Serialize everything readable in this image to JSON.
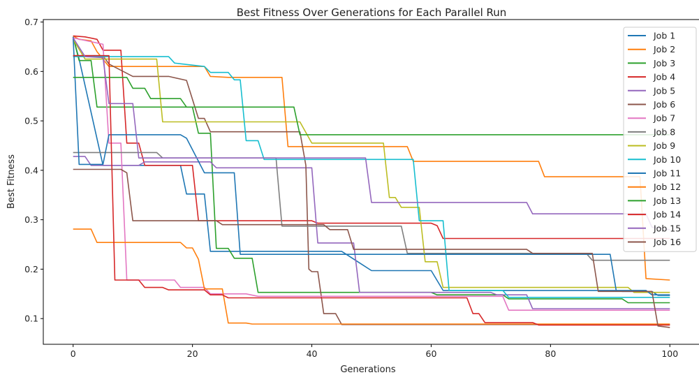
{
  "chart_data": {
    "type": "line",
    "title": "Best Fitness Over Generations for Each Parallel Run",
    "xlabel": "Generations",
    "ylabel": "Best Fitness",
    "xlim": [
      -5,
      105
    ],
    "ylim": [
      0.048,
      0.705
    ],
    "xticks": [
      0,
      20,
      40,
      60,
      80,
      100
    ],
    "xtick_labels": [
      "0",
      "20",
      "40",
      "60",
      "80",
      "100"
    ],
    "yticks": [
      0.1,
      0.2,
      0.3,
      0.4,
      0.5,
      0.6,
      0.7
    ],
    "ytick_labels": [
      "0.1",
      "0.2",
      "0.3",
      "0.4",
      "0.5",
      "0.6",
      "0.7"
    ],
    "grid": false,
    "legend_position": "top-right",
    "series": [
      {
        "name": "Job 1",
        "color": "#1f77b4",
        "points": [
          [
            0,
            0.67
          ],
          [
            1,
            0.625
          ],
          [
            5,
            0.41
          ],
          [
            18,
            0.41
          ],
          [
            19,
            0.352
          ],
          [
            22,
            0.352
          ],
          [
            23,
            0.236
          ],
          [
            45,
            0.236
          ],
          [
            50,
            0.197
          ],
          [
            60,
            0.197
          ],
          [
            62,
            0.157
          ],
          [
            91,
            0.157
          ],
          [
            92,
            0.155
          ],
          [
            97,
            0.155
          ],
          [
            98,
            0.147
          ],
          [
            100,
            0.147
          ]
        ]
      },
      {
        "name": "Job 2",
        "color": "#ff7f0e",
        "points": [
          [
            0,
            0.672
          ],
          [
            1,
            0.665
          ],
          [
            3,
            0.662
          ],
          [
            4,
            0.64
          ],
          [
            6,
            0.61
          ],
          [
            22,
            0.61
          ],
          [
            23,
            0.59
          ],
          [
            26,
            0.588
          ],
          [
            35,
            0.588
          ],
          [
            36,
            0.448
          ],
          [
            56,
            0.448
          ],
          [
            57,
            0.418
          ],
          [
            78,
            0.418
          ],
          [
            79,
            0.387
          ],
          [
            95,
            0.387
          ],
          [
            96,
            0.181
          ],
          [
            100,
            0.178
          ]
        ]
      },
      {
        "name": "Job 3",
        "color": "#2ca02c",
        "points": [
          [
            0,
            0.67
          ],
          [
            1,
            0.622
          ],
          [
            3,
            0.622
          ],
          [
            4,
            0.528
          ],
          [
            20,
            0.528
          ],
          [
            21,
            0.475
          ],
          [
            23,
            0.475
          ],
          [
            24,
            0.242
          ],
          [
            26,
            0.242
          ],
          [
            27,
            0.222
          ],
          [
            30,
            0.222
          ],
          [
            31,
            0.153
          ],
          [
            60,
            0.153
          ],
          [
            61,
            0.148
          ],
          [
            72,
            0.148
          ],
          [
            73,
            0.14
          ],
          [
            92,
            0.14
          ],
          [
            93,
            0.132
          ],
          [
            100,
            0.132
          ]
        ]
      },
      {
        "name": "Job 4",
        "color": "#d62728",
        "points": [
          [
            0,
            0.672
          ],
          [
            2,
            0.67
          ],
          [
            4,
            0.665
          ],
          [
            5,
            0.643
          ],
          [
            8,
            0.643
          ],
          [
            9,
            0.455
          ],
          [
            11,
            0.455
          ],
          [
            12,
            0.41
          ],
          [
            20,
            0.41
          ],
          [
            21,
            0.298
          ],
          [
            40,
            0.298
          ],
          [
            41,
            0.293
          ],
          [
            60,
            0.293
          ],
          [
            61,
            0.288
          ],
          [
            62,
            0.262
          ],
          [
            100,
            0.262
          ]
        ]
      },
      {
        "name": "Job 5",
        "color": "#9467bd",
        "points": [
          [
            0,
            0.428
          ],
          [
            2,
            0.428
          ],
          [
            3,
            0.41
          ],
          [
            11,
            0.41
          ],
          [
            12,
            0.417
          ],
          [
            23,
            0.417
          ],
          [
            24,
            0.405
          ],
          [
            40,
            0.405
          ],
          [
            41,
            0.253
          ],
          [
            47,
            0.253
          ],
          [
            48,
            0.153
          ],
          [
            70,
            0.153
          ],
          [
            71,
            0.148
          ],
          [
            76,
            0.148
          ],
          [
            77,
            0.12
          ],
          [
            100,
            0.12
          ]
        ]
      },
      {
        "name": "Job 6",
        "color": "#8c564b",
        "points": [
          [
            0,
            0.632
          ],
          [
            5,
            0.632
          ],
          [
            6,
            0.615
          ],
          [
            10,
            0.59
          ],
          [
            16,
            0.59
          ],
          [
            19,
            0.582
          ],
          [
            21,
            0.505
          ],
          [
            22,
            0.505
          ],
          [
            23,
            0.478
          ],
          [
            38,
            0.478
          ],
          [
            39,
            0.41
          ],
          [
            39.5,
            0.2
          ],
          [
            40,
            0.195
          ],
          [
            41,
            0.195
          ],
          [
            42,
            0.11
          ],
          [
            44,
            0.11
          ],
          [
            45,
            0.088
          ],
          [
            100,
            0.088
          ]
        ]
      },
      {
        "name": "Job 7",
        "color": "#e377c2",
        "points": [
          [
            0,
            0.668
          ],
          [
            5,
            0.655
          ],
          [
            6,
            0.455
          ],
          [
            8,
            0.455
          ],
          [
            9,
            0.178
          ],
          [
            17,
            0.178
          ],
          [
            18,
            0.163
          ],
          [
            22,
            0.163
          ],
          [
            23,
            0.15
          ],
          [
            29,
            0.15
          ],
          [
            31,
            0.145
          ],
          [
            72,
            0.145
          ],
          [
            73,
            0.117
          ],
          [
            100,
            0.117
          ]
        ]
      },
      {
        "name": "Job 8",
        "color": "#7f7f7f",
        "points": [
          [
            0,
            0.436
          ],
          [
            14,
            0.436
          ],
          [
            15,
            0.425
          ],
          [
            34,
            0.425
          ],
          [
            35,
            0.287
          ],
          [
            55,
            0.287
          ],
          [
            56,
            0.232
          ],
          [
            86,
            0.232
          ],
          [
            87,
            0.218
          ],
          [
            100,
            0.218
          ]
        ]
      },
      {
        "name": "Job 9",
        "color": "#bcbd22",
        "points": [
          [
            0,
            0.665
          ],
          [
            2,
            0.625
          ],
          [
            14,
            0.625
          ],
          [
            15,
            0.498
          ],
          [
            38,
            0.498
          ],
          [
            40,
            0.455
          ],
          [
            52,
            0.455
          ],
          [
            53,
            0.345
          ],
          [
            54,
            0.345
          ],
          [
            55,
            0.325
          ],
          [
            58,
            0.325
          ],
          [
            59,
            0.215
          ],
          [
            61,
            0.215
          ],
          [
            62,
            0.163
          ],
          [
            93,
            0.163
          ],
          [
            94,
            0.153
          ],
          [
            100,
            0.153
          ]
        ]
      },
      {
        "name": "Job 10",
        "color": "#17becf",
        "points": [
          [
            0,
            0.63
          ],
          [
            16,
            0.63
          ],
          [
            17,
            0.617
          ],
          [
            22,
            0.61
          ],
          [
            23,
            0.598
          ],
          [
            26,
            0.598
          ],
          [
            27,
            0.583
          ],
          [
            28,
            0.583
          ],
          [
            29,
            0.46
          ],
          [
            31,
            0.46
          ],
          [
            32,
            0.422
          ],
          [
            57,
            0.422
          ],
          [
            58,
            0.298
          ],
          [
            62,
            0.298
          ],
          [
            63,
            0.157
          ],
          [
            72,
            0.157
          ],
          [
            73,
            0.143
          ],
          [
            100,
            0.143
          ]
        ]
      },
      {
        "name": "Job 11",
        "color": "#1f77b4",
        "points": [
          [
            0,
            0.67
          ],
          [
            1,
            0.412
          ],
          [
            5,
            0.412
          ],
          [
            6,
            0.472
          ],
          [
            18,
            0.472
          ],
          [
            19,
            0.465
          ],
          [
            22,
            0.395
          ],
          [
            27,
            0.395
          ],
          [
            28,
            0.23
          ],
          [
            90,
            0.23
          ],
          [
            91,
            0.157
          ],
          [
            96,
            0.157
          ],
          [
            97,
            0.148
          ],
          [
            100,
            0.148
          ]
        ]
      },
      {
        "name": "Job 12",
        "color": "#ff7f0e",
        "points": [
          [
            0,
            0.281
          ],
          [
            3,
            0.281
          ],
          [
            4,
            0.254
          ],
          [
            18,
            0.254
          ],
          [
            19,
            0.243
          ],
          [
            20,
            0.243
          ],
          [
            21,
            0.22
          ],
          [
            22,
            0.16
          ],
          [
            25,
            0.16
          ],
          [
            26,
            0.091
          ],
          [
            29,
            0.091
          ],
          [
            30,
            0.089
          ],
          [
            100,
            0.089
          ]
        ]
      },
      {
        "name": "Job 13",
        "color": "#2ca02c",
        "points": [
          [
            0,
            0.588
          ],
          [
            9,
            0.588
          ],
          [
            10,
            0.566
          ],
          [
            12,
            0.566
          ],
          [
            13,
            0.545
          ],
          [
            18,
            0.545
          ],
          [
            19,
            0.528
          ],
          [
            37,
            0.528
          ],
          [
            38,
            0.472
          ],
          [
            100,
            0.472
          ]
        ]
      },
      {
        "name": "Job 14",
        "color": "#d62728",
        "points": [
          [
            0,
            0.632
          ],
          [
            6,
            0.632
          ],
          [
            7,
            0.178
          ],
          [
            11,
            0.178
          ],
          [
            12,
            0.163
          ],
          [
            15,
            0.163
          ],
          [
            16,
            0.158
          ],
          [
            22,
            0.158
          ],
          [
            23,
            0.148
          ],
          [
            25,
            0.148
          ],
          [
            26,
            0.142
          ],
          [
            66,
            0.142
          ],
          [
            67,
            0.11
          ],
          [
            68,
            0.11
          ],
          [
            69,
            0.092
          ],
          [
            77,
            0.092
          ],
          [
            78,
            0.087
          ],
          [
            100,
            0.087
          ]
        ]
      },
      {
        "name": "Job 15",
        "color": "#9467bd",
        "points": [
          [
            0,
            0.668
          ],
          [
            2,
            0.63
          ],
          [
            5,
            0.628
          ],
          [
            6,
            0.535
          ],
          [
            10,
            0.535
          ],
          [
            11,
            0.425
          ],
          [
            49,
            0.425
          ],
          [
            50,
            0.335
          ],
          [
            76,
            0.335
          ],
          [
            77,
            0.312
          ],
          [
            96,
            0.312
          ],
          [
            97,
            0.285
          ],
          [
            100,
            0.28
          ]
        ]
      },
      {
        "name": "Job 16",
        "color": "#8c564b",
        "points": [
          [
            0,
            0.402
          ],
          [
            8,
            0.402
          ],
          [
            9,
            0.395
          ],
          [
            10,
            0.298
          ],
          [
            24,
            0.298
          ],
          [
            25,
            0.29
          ],
          [
            42,
            0.29
          ],
          [
            43,
            0.28
          ],
          [
            46,
            0.28
          ],
          [
            47,
            0.24
          ],
          [
            76,
            0.24
          ],
          [
            77,
            0.232
          ],
          [
            87,
            0.232
          ],
          [
            88,
            0.155
          ],
          [
            97,
            0.155
          ],
          [
            98,
            0.085
          ],
          [
            100,
            0.082
          ]
        ]
      }
    ]
  }
}
